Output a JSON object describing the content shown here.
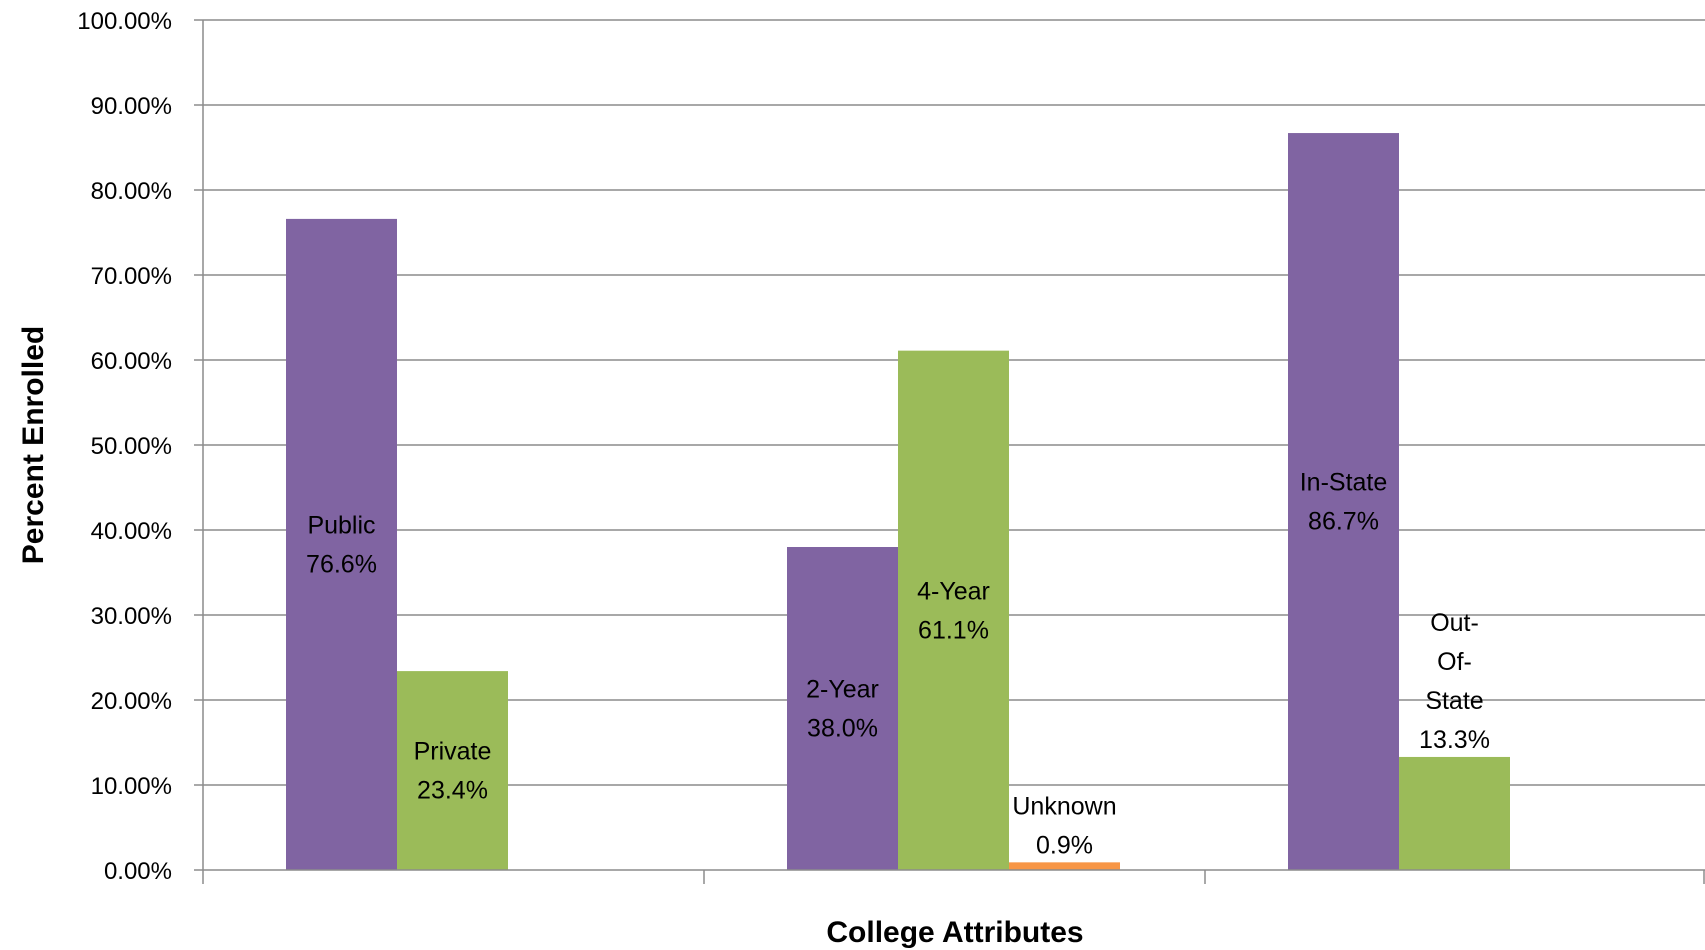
{
  "chart_data": {
    "type": "bar",
    "title": "",
    "xlabel": "College Attributes",
    "ylabel": "Percent Enrolled",
    "ylim": [
      0,
      100
    ],
    "y_ticks": [
      "0.00%",
      "10.00%",
      "20.00%",
      "30.00%",
      "40.00%",
      "50.00%",
      "60.00%",
      "70.00%",
      "80.00%",
      "90.00%",
      "100.00%"
    ],
    "grid": true,
    "legend": "none",
    "group_count": 3,
    "bars": [
      {
        "group": 0,
        "slot": 0,
        "value": 76.6,
        "color": "#8064a2",
        "label_lines": [
          "Public",
          "76.6%"
        ]
      },
      {
        "group": 0,
        "slot": 1,
        "value": 23.4,
        "color": "#9bbb59",
        "label_lines": [
          "Private",
          "23.4%"
        ]
      },
      {
        "group": 1,
        "slot": 0,
        "value": 38.0,
        "color": "#8064a2",
        "label_lines": [
          "2-Year",
          "38.0%"
        ]
      },
      {
        "group": 1,
        "slot": 1,
        "value": 61.1,
        "color": "#9bbb59",
        "label_lines": [
          "4-Year",
          "61.1%"
        ]
      },
      {
        "group": 1,
        "slot": 2,
        "value": 0.9,
        "color": "#f79646",
        "label_lines": [
          "Unknown",
          "0.9%"
        ]
      },
      {
        "group": 2,
        "slot": 0,
        "value": 86.7,
        "color": "#8064a2",
        "label_lines": [
          "In-State",
          "86.7%"
        ]
      },
      {
        "group": 2,
        "slot": 1,
        "value": 13.3,
        "color": "#9bbb59",
        "label_lines": [
          "Out-",
          "Of-",
          "State",
          "13.3%"
        ]
      }
    ]
  }
}
